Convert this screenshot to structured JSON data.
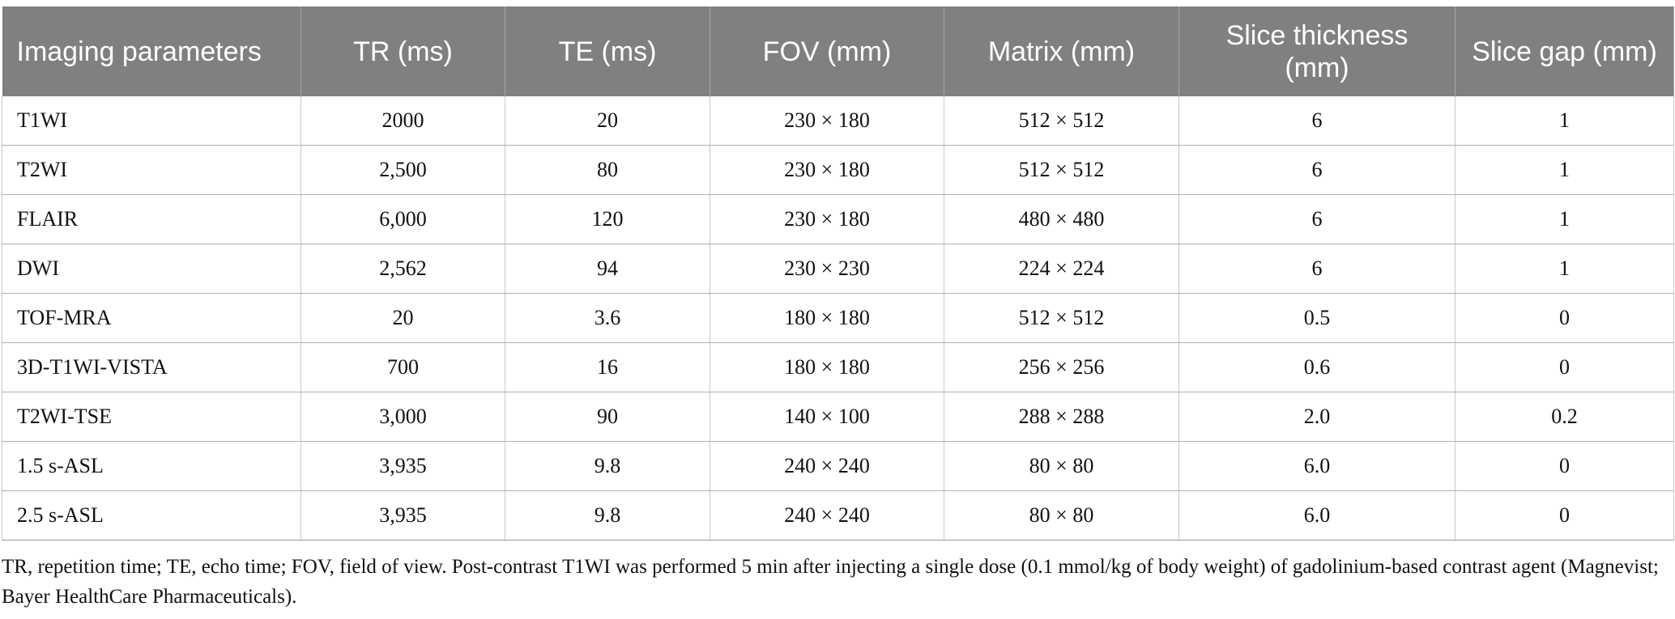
{
  "table": {
    "headers": [
      "Imaging parameters",
      "TR (ms)",
      "TE (ms)",
      "FOV (mm)",
      "Matrix (mm)",
      "Slice thickness (mm)",
      "Slice gap (mm)"
    ],
    "rows": [
      [
        "T1WI",
        "2000",
        "20",
        "230 × 180",
        "512 × 512",
        "6",
        "1"
      ],
      [
        "T2WI",
        "2,500",
        "80",
        "230 × 180",
        "512 × 512",
        "6",
        "1"
      ],
      [
        "FLAIR",
        "6,000",
        "120",
        "230 × 180",
        "480 × 480",
        "6",
        "1"
      ],
      [
        "DWI",
        "2,562",
        "94",
        "230 × 230",
        "224 × 224",
        "6",
        "1"
      ],
      [
        "TOF-MRA",
        "20",
        "3.6",
        "180 × 180",
        "512 × 512",
        "0.5",
        "0"
      ],
      [
        "3D-T1WI-VISTA",
        "700",
        "16",
        "180 × 180",
        "256 × 256",
        "0.6",
        "0"
      ],
      [
        "T2WI-TSE",
        "3,000",
        "90",
        "140 × 100",
        "288 × 288",
        "2.0",
        "0.2"
      ],
      [
        "1.5 s-ASL",
        "3,935",
        "9.8",
        "240 × 240",
        "80 × 80",
        "6.0",
        "0"
      ],
      [
        "2.5 s-ASL",
        "3,935",
        "9.8",
        "240 × 240",
        "80 × 80",
        "6.0",
        "0"
      ]
    ]
  },
  "footnote": "TR, repetition time; TE, echo time; FOV, field of view. Post-contrast T1WI was performed 5 min after injecting a single dose (0.1 mmol/kg of body weight) of gadolinium-based contrast agent (Magnevist; Bayer HealthCare Pharmaceuticals)."
}
